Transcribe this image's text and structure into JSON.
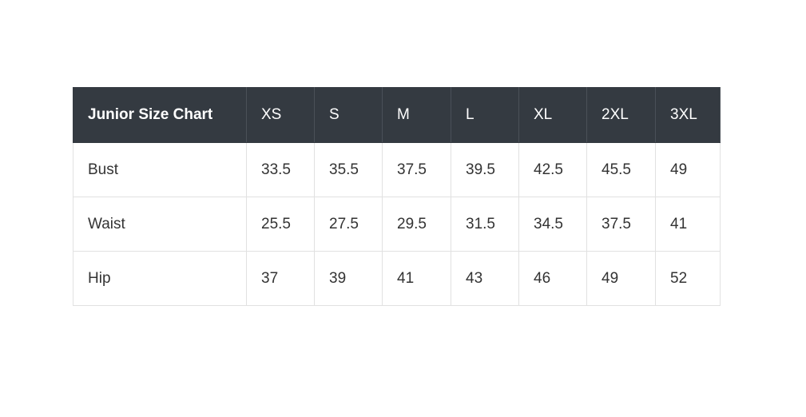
{
  "table": {
    "header": [
      "Junior Size Chart",
      "XS",
      "S",
      "M",
      "L",
      "XL",
      "2XL",
      "3XL"
    ],
    "rows": [
      [
        "Bust",
        33.5,
        35.5,
        37.5,
        39.5,
        42.5,
        45.5,
        49
      ],
      [
        "Waist",
        25.5,
        27.5,
        29.5,
        31.5,
        34.5,
        37.5,
        41
      ],
      [
        "Hip",
        37,
        39,
        41,
        43,
        46,
        49,
        52
      ]
    ]
  }
}
